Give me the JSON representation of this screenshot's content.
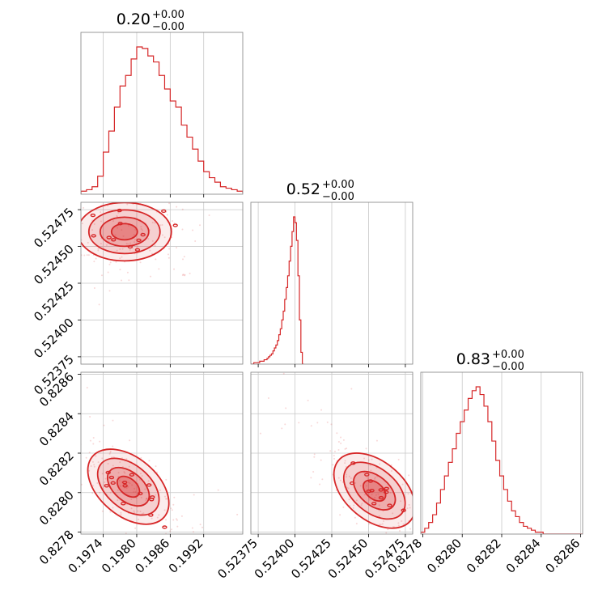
{
  "colors": {
    "accent": "#d62728",
    "grid": "#c8c8c8",
    "frame": "#808080"
  },
  "chart_data": {
    "type": "corner",
    "grid": true,
    "parameters": [
      {
        "title": "0.20",
        "err_plus": "+0.00",
        "err_minus": "−0.00",
        "range": [
          0.197,
          0.1999
        ],
        "ticks": [
          0.1974,
          0.198,
          0.1986,
          0.1992
        ],
        "tick_labels": [
          "0.1974",
          "0.1980",
          "0.1986",
          "0.1992"
        ]
      },
      {
        "title": "0.52",
        "err_plus": "+0.00",
        "err_minus": "−0.00",
        "range": [
          0.5237,
          0.5248
        ],
        "ticks": [
          0.52375,
          0.524,
          0.52425,
          0.5245,
          0.52475
        ],
        "tick_labels": [
          "0.52375",
          "0.52400",
          "0.52425",
          "0.52450",
          "0.52475"
        ]
      },
      {
        "title": "0.83",
        "err_plus": "+0.00",
        "err_minus": "−0.00",
        "range": [
          0.82779,
          0.82861
        ],
        "ticks": [
          0.8278,
          0.828,
          0.8282,
          0.8284,
          0.8286
        ],
        "tick_labels": [
          "0.8278",
          "0.8280",
          "0.8282",
          "0.8284",
          "0.8286"
        ]
      }
    ],
    "histograms": [
      {
        "param": 0,
        "bin_start": 0.197,
        "bin_width": 0.0001,
        "counts": [
          2,
          3,
          5,
          12,
          28,
          42,
          58,
          72,
          79,
          90,
          98,
          97,
          92,
          88,
          79,
          70,
          62,
          58,
          46,
          38,
          30,
          22,
          15,
          11,
          8,
          5,
          4,
          3,
          2,
          1
        ]
      },
      {
        "param": 1,
        "bin_start": 0.5237,
        "bin_width": 1e-05,
        "counts": [
          0,
          0,
          1,
          1,
          1,
          1,
          2,
          2,
          2,
          3,
          3,
          4,
          5,
          6,
          7,
          9,
          11,
          13,
          16,
          20,
          24,
          30,
          36,
          44,
          52,
          60,
          70,
          80,
          90,
          100,
          96,
          84,
          60,
          30,
          8,
          0
        ]
      },
      {
        "param": 2,
        "bin_start": 0.82779,
        "bin_width": 2e-05,
        "counts": [
          1,
          3,
          6,
          10,
          16,
          23,
          30,
          37,
          44,
          52,
          58,
          64,
          70,
          74,
          76,
          72,
          66,
          58,
          48,
          38,
          30,
          23,
          17,
          12,
          9,
          6,
          4,
          3,
          2,
          1,
          1,
          0,
          0,
          0,
          0,
          0,
          0,
          0,
          0,
          0,
          0
        ]
      }
    ],
    "pairs": [
      {
        "x_param": 0,
        "y_param": 1,
        "density_center": [
          0.19778,
          0.5246
        ],
        "correlation": 0
      },
      {
        "x_param": 0,
        "y_param": 2,
        "density_center": [
          0.19785,
          0.82803
        ],
        "correlation": -0.7
      },
      {
        "x_param": 1,
        "y_param": 2,
        "density_center": [
          0.52454,
          0.82801
        ],
        "correlation": -0.75
      }
    ]
  }
}
